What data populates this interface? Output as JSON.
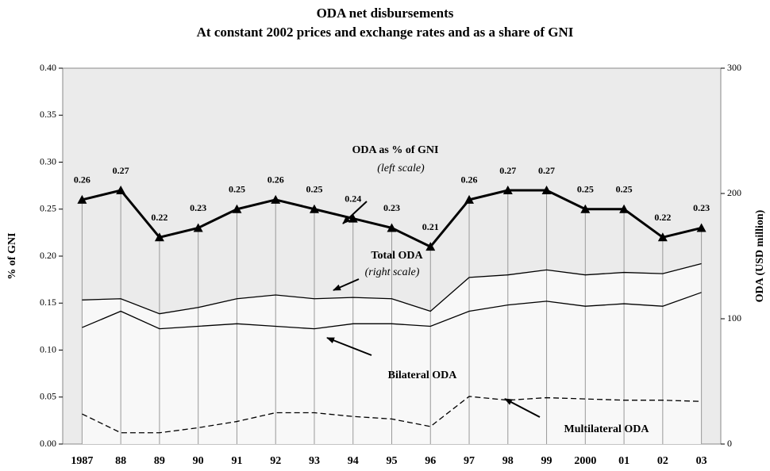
{
  "chart_data": {
    "type": "line",
    "title": "ODA net disbursements",
    "subtitle": "At constant 2002 prices and exchange rates and as a share of GNI",
    "y_label": "% of GNI",
    "y2_label": "ODA (USD million)",
    "categories": [
      "1987",
      "88",
      "89",
      "90",
      "91",
      "92",
      "93",
      "94",
      "95",
      "96",
      "97",
      "98",
      "99",
      "2000",
      "01",
      "02",
      "03"
    ],
    "ylim": [
      0,
      0.4
    ],
    "yticks": [
      {
        "value": 0,
        "label": "0.00"
      },
      0.05,
      {
        "value": 0.1,
        "label": "0.10"
      },
      0.15,
      {
        "value": 0.2,
        "label": "0.20"
      },
      0.25,
      {
        "value": 0.3,
        "label": "0.30"
      },
      0.35,
      {
        "value": 0.4,
        "label": "0.40"
      }
    ],
    "y2lim": [
      0,
      300
    ],
    "y2ticks": [
      0,
      100,
      200,
      300
    ],
    "series": [
      {
        "name": "ODA as % of GNI",
        "color": "#000000",
        "values": [
          0.26,
          0.27,
          0.22,
          0.23,
          0.25,
          0.26,
          0.25,
          0.24,
          0.23,
          0.21,
          0.26,
          0.27,
          0.27,
          0.25,
          0.25,
          0.22,
          0.23
        ]
      },
      {
        "name": "Total ODA",
        "color": "#000000",
        "axis": "y2",
        "values": [
          115,
          116,
          104,
          109,
          116,
          119,
          116,
          117,
          116,
          106,
          133,
          135,
          139,
          135,
          137,
          136,
          144
        ]
      },
      {
        "name": "Bilateral ODA",
        "color": "#000000",
        "axis": "y2",
        "values": [
          93,
          106,
          92,
          94,
          96,
          94,
          92,
          96,
          96,
          94,
          106,
          111,
          114,
          110,
          112,
          110,
          121
        ]
      },
      {
        "name": "Multilateral ODA",
        "color": "#000000",
        "axis": "y2",
        "dashed": true,
        "values": [
          24,
          9,
          9,
          13,
          18,
          25,
          25,
          22,
          20,
          14,
          38,
          35,
          37,
          36,
          35,
          35,
          34
        ]
      }
    ],
    "annotations": [
      "ODA as % of GNI",
      "(left scale)",
      "Total ODA",
      "(right scale)",
      "Bilateral ODA",
      "Multilateral ODA"
    ]
  }
}
